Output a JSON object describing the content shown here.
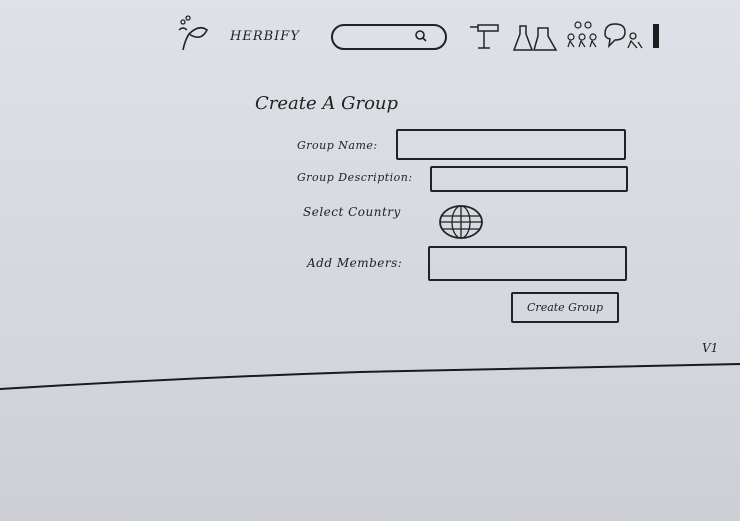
{
  "header": {
    "brand": "HERBIFY",
    "icons": [
      {
        "name": "leaf-logo-icon"
      },
      {
        "name": "search-icon"
      },
      {
        "name": "signpost-icon"
      },
      {
        "name": "lab-flasks-icon"
      },
      {
        "name": "users-group-icon"
      },
      {
        "name": "chat-user-icon"
      },
      {
        "name": "menu-bar-icon"
      }
    ]
  },
  "form": {
    "title": "Create A Group",
    "group_name_label": "Group Name:",
    "group_name_value": "",
    "group_description_label": "Group Description:",
    "group_description_value": "",
    "select_country_label": "Select Country",
    "add_members_label": "Add Members:",
    "add_members_value": "",
    "submit_label": "Create Group"
  },
  "footer": {
    "version": "V1"
  }
}
